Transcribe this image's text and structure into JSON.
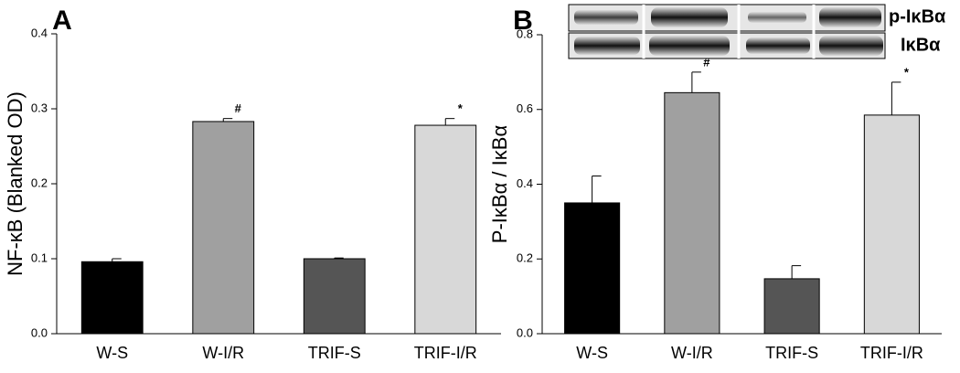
{
  "chart_data": [
    {
      "type": "bar",
      "panel_label": "A",
      "y_label": "NF-κB (Blanked OD)",
      "categories": [
        "W-S",
        "W-I/R",
        "TRIF-S",
        "TRIF-I/R"
      ],
      "values": [
        0.096,
        0.283,
        0.1,
        0.278
      ],
      "errors": [
        0.004,
        0.004,
        0.001,
        0.009
      ],
      "annotations": [
        null,
        "#",
        null,
        "*"
      ],
      "colors": [
        "#000000",
        "#a0a0a0",
        "#555555",
        "#d8d8d8"
      ],
      "ylim": [
        0,
        0.4
      ],
      "yticks": [
        {
          "value": 0,
          "label": "0.0"
        },
        0.1,
        0.2,
        0.3,
        0.4
      ]
    },
    {
      "type": "bar",
      "panel_label": "B",
      "y_label": "P-IκBα / IκBα",
      "blot_labels": [
        "p-IκBα",
        "IκBα"
      ],
      "categories": [
        "W-S",
        "W-I/R",
        "TRIF-S",
        "TRIF-I/R"
      ],
      "values": [
        0.35,
        0.645,
        0.147,
        0.585
      ],
      "errors": [
        0.072,
        0.055,
        0.035,
        0.088
      ],
      "annotations": [
        null,
        "#",
        null,
        "*"
      ],
      "colors": [
        "#000000",
        "#a0a0a0",
        "#555555",
        "#d8d8d8"
      ],
      "ylim": [
        0,
        0.8
      ],
      "yticks": [
        {
          "value": 0,
          "label": "0.0"
        },
        0.2,
        0.4,
        0.6,
        0.8
      ]
    }
  ]
}
